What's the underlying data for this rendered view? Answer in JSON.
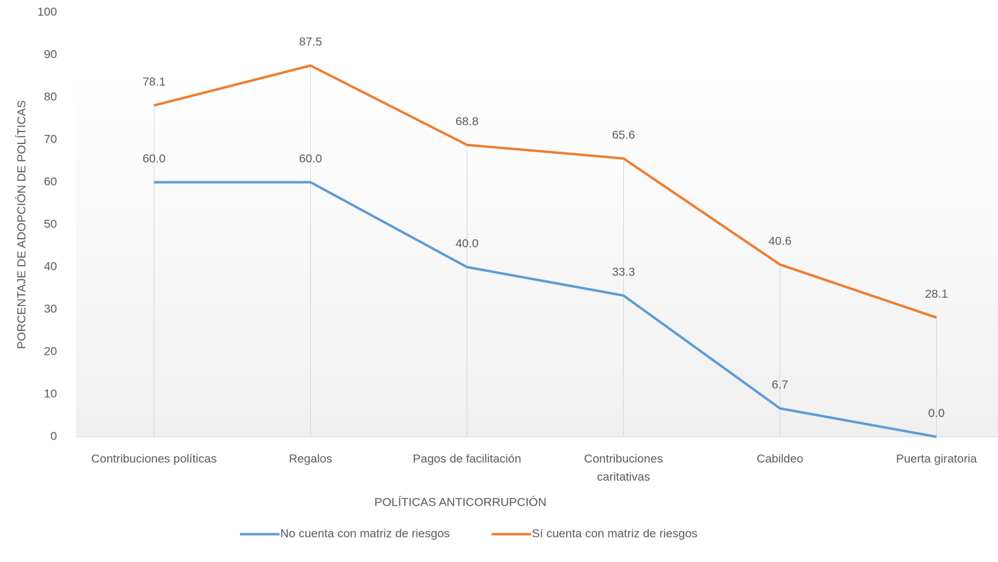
{
  "chart_data": {
    "type": "line",
    "categories": [
      "Contribuciones políticas",
      "Regalos",
      "Pagos de facilitación",
      "Contribuciones caritativas",
      "Cabildeo",
      "Puerta giratoria"
    ],
    "series": [
      {
        "name": "No cuenta con matriz de riesgos",
        "color": "#5b9bd5",
        "values": [
          60,
          60,
          40,
          33.3,
          6.7,
          0
        ],
        "value_labels": [
          "60.0",
          "60.0",
          "40.0",
          "33.3",
          "6.7",
          "0.0"
        ]
      },
      {
        "name": "Sí cuenta con matriz de riesgos",
        "color": "#ed7d31",
        "values": [
          78.1,
          87.5,
          68.8,
          65.6,
          40.6,
          28.1
        ],
        "value_labels": [
          "78.1",
          "87.5",
          "68.8",
          "65.6",
          "40.6",
          "28.1"
        ]
      }
    ],
    "xlabel": "POLÍTICAS ANTICORRUPCIÓN",
    "ylabel": "PORCENTAJE DE ADOPCIÓN DE POLÍTICAS",
    "ylim": [
      0,
      100
    ],
    "yticks": [
      0,
      10,
      20,
      30,
      40,
      50,
      60,
      70,
      80,
      90,
      100
    ],
    "legend": "bottom"
  }
}
